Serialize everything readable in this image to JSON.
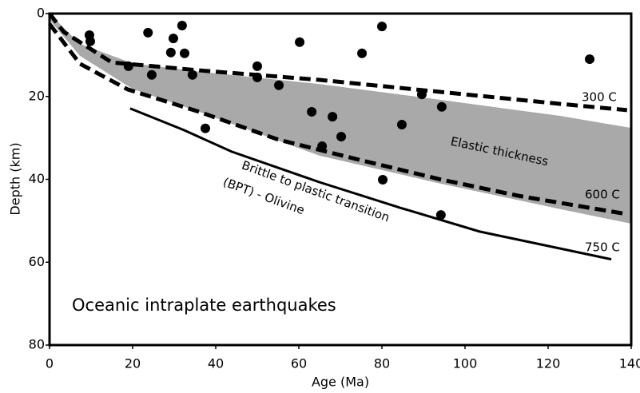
{
  "chart_data": {
    "type": "scatter",
    "title": "Oceanic intraplate earthquakes",
    "x_label": "Age (Ma)",
    "y_label": "Depth (km)",
    "xlim": [
      0,
      140
    ],
    "ylim": [
      0,
      80
    ],
    "y_inverted": true,
    "xticks": [
      0,
      20,
      40,
      60,
      80,
      100,
      120,
      140
    ],
    "yticks": [
      0,
      20,
      40,
      60,
      80
    ],
    "points": {
      "color": "#000000",
      "x": [
        9.6,
        9.8,
        23.7,
        31.9,
        29.8,
        29.2,
        32.5,
        19.0,
        24.6,
        34.4,
        60.2,
        50.0,
        50.0,
        55.2,
        80.0,
        75.2,
        130.0,
        89.6,
        94.4,
        63.1,
        68.1,
        84.8,
        70.2,
        65.6,
        37.5,
        80.2,
        94.2
      ],
      "y": [
        5.2,
        6.7,
        4.6,
        2.9,
        6.0,
        9.4,
        9.6,
        12.7,
        14.8,
        14.8,
        6.9,
        12.7,
        15.4,
        17.3,
        3.1,
        9.6,
        11.0,
        19.5,
        22.5,
        23.7,
        24.9,
        26.8,
        29.7,
        32.0,
        27.7,
        40.1,
        48.6
      ]
    },
    "area": {
      "name": "Elastic thickness",
      "color": "#a9a9a9",
      "x": [
        0,
        7.3,
        20,
        36,
        65,
        94,
        123,
        140
      ],
      "y_upper": [
        0,
        7.3,
        12,
        14,
        17,
        20.8,
        24.7,
        27.6
      ],
      "y_lower": [
        1.5,
        10.2,
        18.2,
        23.7,
        34.3,
        41,
        47.2,
        50.7
      ]
    },
    "lines": [
      {
        "name": "300 C",
        "color": "#000000",
        "dashed": true,
        "x": [
          0,
          3.4,
          15,
          36,
          65,
          94,
          123,
          139
        ],
        "y": [
          0,
          4.4,
          11.8,
          13.7,
          16,
          18.9,
          21.8,
          23.3
        ]
      },
      {
        "name": "600 C",
        "color": "#000000",
        "dashed": true,
        "x": [
          0,
          7.3,
          18.8,
          36,
          55,
          74.6,
          94,
          113,
          139
        ],
        "y": [
          2.5,
          12.1,
          18.3,
          23.7,
          30.4,
          35.3,
          40,
          44,
          48.4
        ]
      },
      {
        "name": "750 C",
        "color": "#000000",
        "dashed": false,
        "x": [
          19.4,
          32.3,
          43.8,
          65,
          84.2,
          103.5,
          135.2
        ],
        "y": [
          22.9,
          28.1,
          33.3,
          40.7,
          46.8,
          52.6,
          59.3
        ]
      }
    ],
    "annotations": [
      "Brittle to plastic transition",
      "(BPT) - Olivine"
    ]
  }
}
